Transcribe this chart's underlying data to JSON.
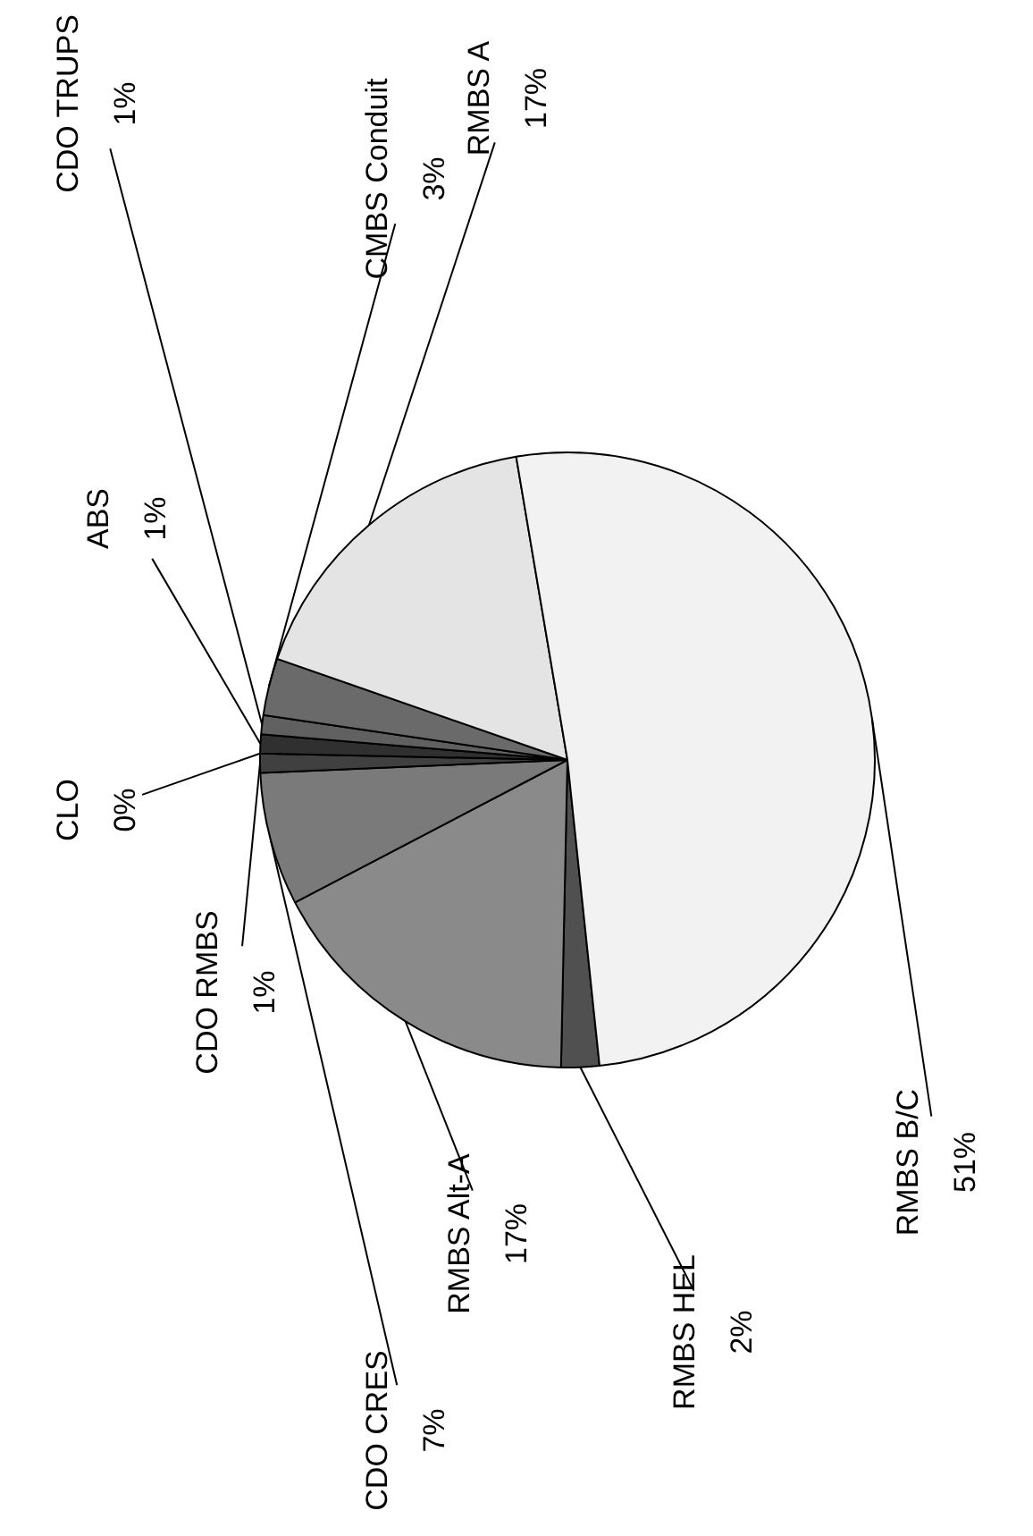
{
  "chart_data": {
    "type": "pie",
    "categories": [
      "RMBS HEL",
      "RMBS Alt-A",
      "CDO CRES",
      "CDO RMBS",
      "CLO",
      "ABS",
      "CDO TRUPS",
      "CMBS Conduit",
      "RMBS A",
      "RMBS B/C"
    ],
    "values": [
      2,
      17,
      7,
      1,
      0,
      1,
      1,
      3,
      17,
      51
    ],
    "value_labels": [
      "2%",
      "17%",
      "7%",
      "1%",
      "0%",
      "1%",
      "1%",
      "3%",
      "17%",
      "51%"
    ],
    "colors": [
      "#505050",
      "#8a8a8a",
      "#7a7a7a",
      "#404040",
      "#f4f4f4",
      "#303030",
      "#606060",
      "#6a6a6a",
      "#e4e4e4",
      "#f2f2f2"
    ],
    "legend": false
  }
}
